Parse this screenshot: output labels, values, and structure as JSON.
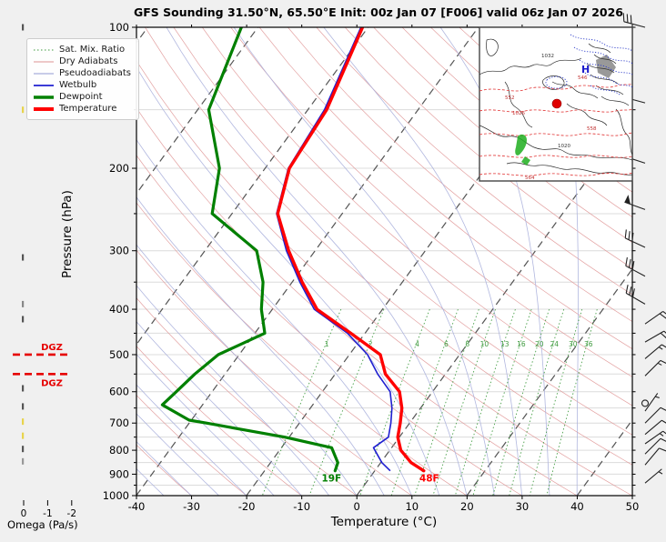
{
  "title": "GFS Sounding 31.50°N, 65.50°E Init: 00z Jan 07 [F006] valid 06z Jan 07 2026",
  "axes": {
    "pressure_label": "Pressure (hPa)",
    "temperature_label": "Temperature (°C)",
    "pressure_ticks": [
      100,
      200,
      300,
      400,
      500,
      600,
      700,
      800,
      900,
      1000
    ],
    "temperature_ticks": [
      -40,
      -30,
      -20,
      -10,
      0,
      10,
      20,
      30,
      40,
      50
    ]
  },
  "legend": {
    "items": [
      {
        "key": "sat_mix",
        "label": "Sat. Mix. Ratio",
        "color": "#3f9b3f",
        "width": 1,
        "dash": "1.5 2.5"
      },
      {
        "key": "dry",
        "label": "Dry Adiabats",
        "color": "#de9191",
        "width": 1,
        "dash": ""
      },
      {
        "key": "pseudo",
        "label": "Pseudoadiabats",
        "color": "#a9afdc",
        "width": 1.2,
        "dash": ""
      },
      {
        "key": "wetbulb",
        "label": "Wetbulb",
        "color": "#1f1fd0",
        "width": 1.8,
        "dash": ""
      },
      {
        "key": "dewpoint",
        "label": "Dewpoint",
        "color": "#008000",
        "width": 3.5,
        "dash": ""
      },
      {
        "key": "temperature",
        "label": "Temperature",
        "color": "#ff0000",
        "width": 4,
        "dash": ""
      }
    ]
  },
  "omega": {
    "label": "Omega (Pa/s)",
    "ticks": [
      0,
      -1,
      -2
    ],
    "bars": [
      {
        "p": 100,
        "v": 0,
        "color": "#555555"
      },
      {
        "p": 150,
        "v": 0,
        "color": "#e8d44d"
      },
      {
        "p": 310,
        "v": 0,
        "color": "#555555"
      },
      {
        "p": 390,
        "v": 0,
        "color": "#888888"
      },
      {
        "p": 420,
        "v": 0,
        "color": "#555555"
      },
      {
        "p": 590,
        "v": 0,
        "color": "#555555"
      },
      {
        "p": 645,
        "v": 0,
        "color": "#555555"
      },
      {
        "p": 695,
        "v": 0,
        "color": "#e8d44d"
      },
      {
        "p": 745,
        "v": 0,
        "color": "#e8d44d"
      },
      {
        "p": 795,
        "v": 0,
        "color": "#555555"
      },
      {
        "p": 845,
        "v": 0,
        "color": "#999999"
      }
    ]
  },
  "dgz": {
    "label": "DGZ",
    "top_pressure_hpa": 500,
    "bottom_pressure_hpa": 550,
    "color": "#e60000"
  },
  "surface_annotations": [
    {
      "text": "19F",
      "series": "dewpoint",
      "color": "#008000"
    },
    {
      "text": "48F",
      "series": "temperature",
      "color": "#ff0000"
    }
  ],
  "inset_map": {
    "labels": [
      "1032",
      "546",
      "552",
      "1026",
      "558",
      "1020",
      "564"
    ],
    "high_marker": "H",
    "station_marker": "red-dot"
  },
  "chart_data": {
    "type": "skewt",
    "title": "GFS Sounding 31.50°N, 65.50°E Init: 00z Jan 07 [F006] valid 06z Jan 07 2026",
    "pressure_axis_hpa": {
      "min": 100,
      "max": 1000,
      "scale": "log"
    },
    "temperature_axis_c": {
      "min": -40,
      "max": 50,
      "step": 10
    },
    "background": {
      "isotherms_c": {
        "from": -100,
        "to": 40,
        "step": 20
      },
      "dry_adiabats_c": {
        "from": -40,
        "to": 190,
        "step": 10
      },
      "moist_adiabats_c": {
        "from": -40,
        "to": 40,
        "step": 5
      },
      "mixing_ratios_g_kg": [
        1,
        2,
        4,
        6,
        8,
        10,
        13,
        16,
        20,
        24,
        30,
        36
      ],
      "mixing_label_pressure_hpa": 485
    },
    "profiles": {
      "temperature": [
        [
          100,
          -61
        ],
        [
          150,
          -56.6
        ],
        [
          200,
          -55.6
        ],
        [
          250,
          -51.7
        ],
        [
          300,
          -44.8
        ],
        [
          350,
          -38.2
        ],
        [
          400,
          -31.9
        ],
        [
          450,
          -22.6
        ],
        [
          500,
          -14.4
        ],
        [
          550,
          -10.9
        ],
        [
          600,
          -6.0
        ],
        [
          650,
          -3.4
        ],
        [
          700,
          -1.7
        ],
        [
          750,
          -0.3
        ],
        [
          800,
          2.0
        ],
        [
          850,
          5.5
        ],
        [
          885,
          8.9
        ]
      ],
      "dewpoint": [
        [
          100,
          -83
        ],
        [
          150,
          -78
        ],
        [
          200,
          -68.3
        ],
        [
          250,
          -63.6
        ],
        [
          300,
          -50.6
        ],
        [
          350,
          -45.3
        ],
        [
          400,
          -42.0
        ],
        [
          450,
          -38.2
        ],
        [
          500,
          -43.8
        ],
        [
          550,
          -45.5
        ],
        [
          600,
          -46.5
        ],
        [
          640,
          -47.3
        ],
        [
          690,
          -40.4
        ],
        [
          700,
          -36.9
        ],
        [
          750,
          -20.8
        ],
        [
          790,
          -10.9
        ],
        [
          850,
          -7.8
        ],
        [
          885,
          -7.2
        ]
      ],
      "wetbulb": [
        [
          100,
          -61.3
        ],
        [
          150,
          -57.0
        ],
        [
          200,
          -55.8
        ],
        [
          250,
          -51.9
        ],
        [
          300,
          -45.2
        ],
        [
          350,
          -38.6
        ],
        [
          400,
          -32.4
        ],
        [
          450,
          -23.2
        ],
        [
          500,
          -16.7
        ],
        [
          550,
          -12.3
        ],
        [
          600,
          -7.7
        ],
        [
          650,
          -5.2
        ],
        [
          700,
          -3.4
        ],
        [
          750,
          -2.0
        ],
        [
          790,
          -3.3
        ],
        [
          850,
          0.2
        ],
        [
          885,
          2.8
        ]
      ]
    },
    "wind_barbs": [
      {
        "p": 100,
        "kt": 30,
        "dir": 285
      },
      {
        "p": 145,
        "kt": 55,
        "dir": 285
      },
      {
        "p": 195,
        "kt": 55,
        "dir": 288
      },
      {
        "p": 245,
        "kt": 55,
        "dir": 290
      },
      {
        "p": 295,
        "kt": 30,
        "dir": 295
      },
      {
        "p": 340,
        "kt": 30,
        "dir": 298
      },
      {
        "p": 390,
        "kt": 30,
        "dir": 300
      },
      {
        "p": 430,
        "kt": 20,
        "dir": 55
      },
      {
        "p": 470,
        "kt": 20,
        "dir": 60
      },
      {
        "p": 510,
        "kt": 15,
        "dir": 50
      },
      {
        "p": 555,
        "kt": 15,
        "dir": 45
      },
      {
        "p": 635,
        "kt": 0,
        "dir": 0
      },
      {
        "p": 660,
        "kt": 5,
        "dir": 35
      },
      {
        "p": 700,
        "kt": 10,
        "dir": 45
      },
      {
        "p": 740,
        "kt": 10,
        "dir": 50
      },
      {
        "p": 775,
        "kt": 15,
        "dir": 55
      },
      {
        "p": 815,
        "kt": 10,
        "dir": 45
      },
      {
        "p": 860,
        "kt": 10,
        "dir": 40
      },
      {
        "p": 940,
        "kt": 5,
        "dir": 50
      }
    ]
  }
}
